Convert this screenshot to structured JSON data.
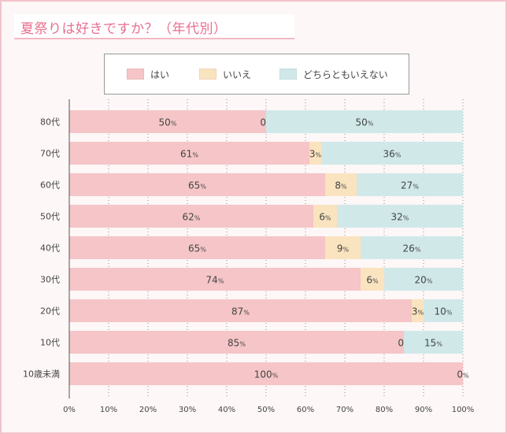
{
  "title": "夏祭りは好きですか？（年代別）",
  "colors": {
    "yes": "#f5c5c7",
    "no": "#fae3bf",
    "neither": "#d1e8e9",
    "accent": "#e8708f"
  },
  "legend": [
    {
      "label": "はい",
      "color": "#f5c5c7"
    },
    {
      "label": "いいえ",
      "color": "#fae3bf"
    },
    {
      "label": "どちらともいえない",
      "color": "#d1e8e9"
    }
  ],
  "chart_data": {
    "type": "bar",
    "orientation": "horizontal",
    "stacked": true,
    "title": "夏祭りは好きですか？（年代別）",
    "categories": [
      "80代",
      "70代",
      "60代",
      "50代",
      "40代",
      "30代",
      "20代",
      "10代",
      "10歳未満"
    ],
    "series": [
      {
        "name": "はい",
        "values": [
          50,
          61,
          65,
          62,
          65,
          74,
          87,
          85,
          100
        ]
      },
      {
        "name": "いいえ",
        "values": [
          0,
          3,
          8,
          6,
          9,
          6,
          3,
          0,
          0
        ]
      },
      {
        "name": "どちらともいえない",
        "values": [
          50,
          36,
          27,
          32,
          26,
          20,
          10,
          15,
          0
        ]
      }
    ],
    "xlim": [
      0,
      100
    ],
    "x_ticks": [
      "0%",
      "10%",
      "20%",
      "30%",
      "40%",
      "50%",
      "60%",
      "70%",
      "80%",
      "90%",
      "100%"
    ],
    "unit": "%",
    "grid": true,
    "legend_position": "top"
  }
}
